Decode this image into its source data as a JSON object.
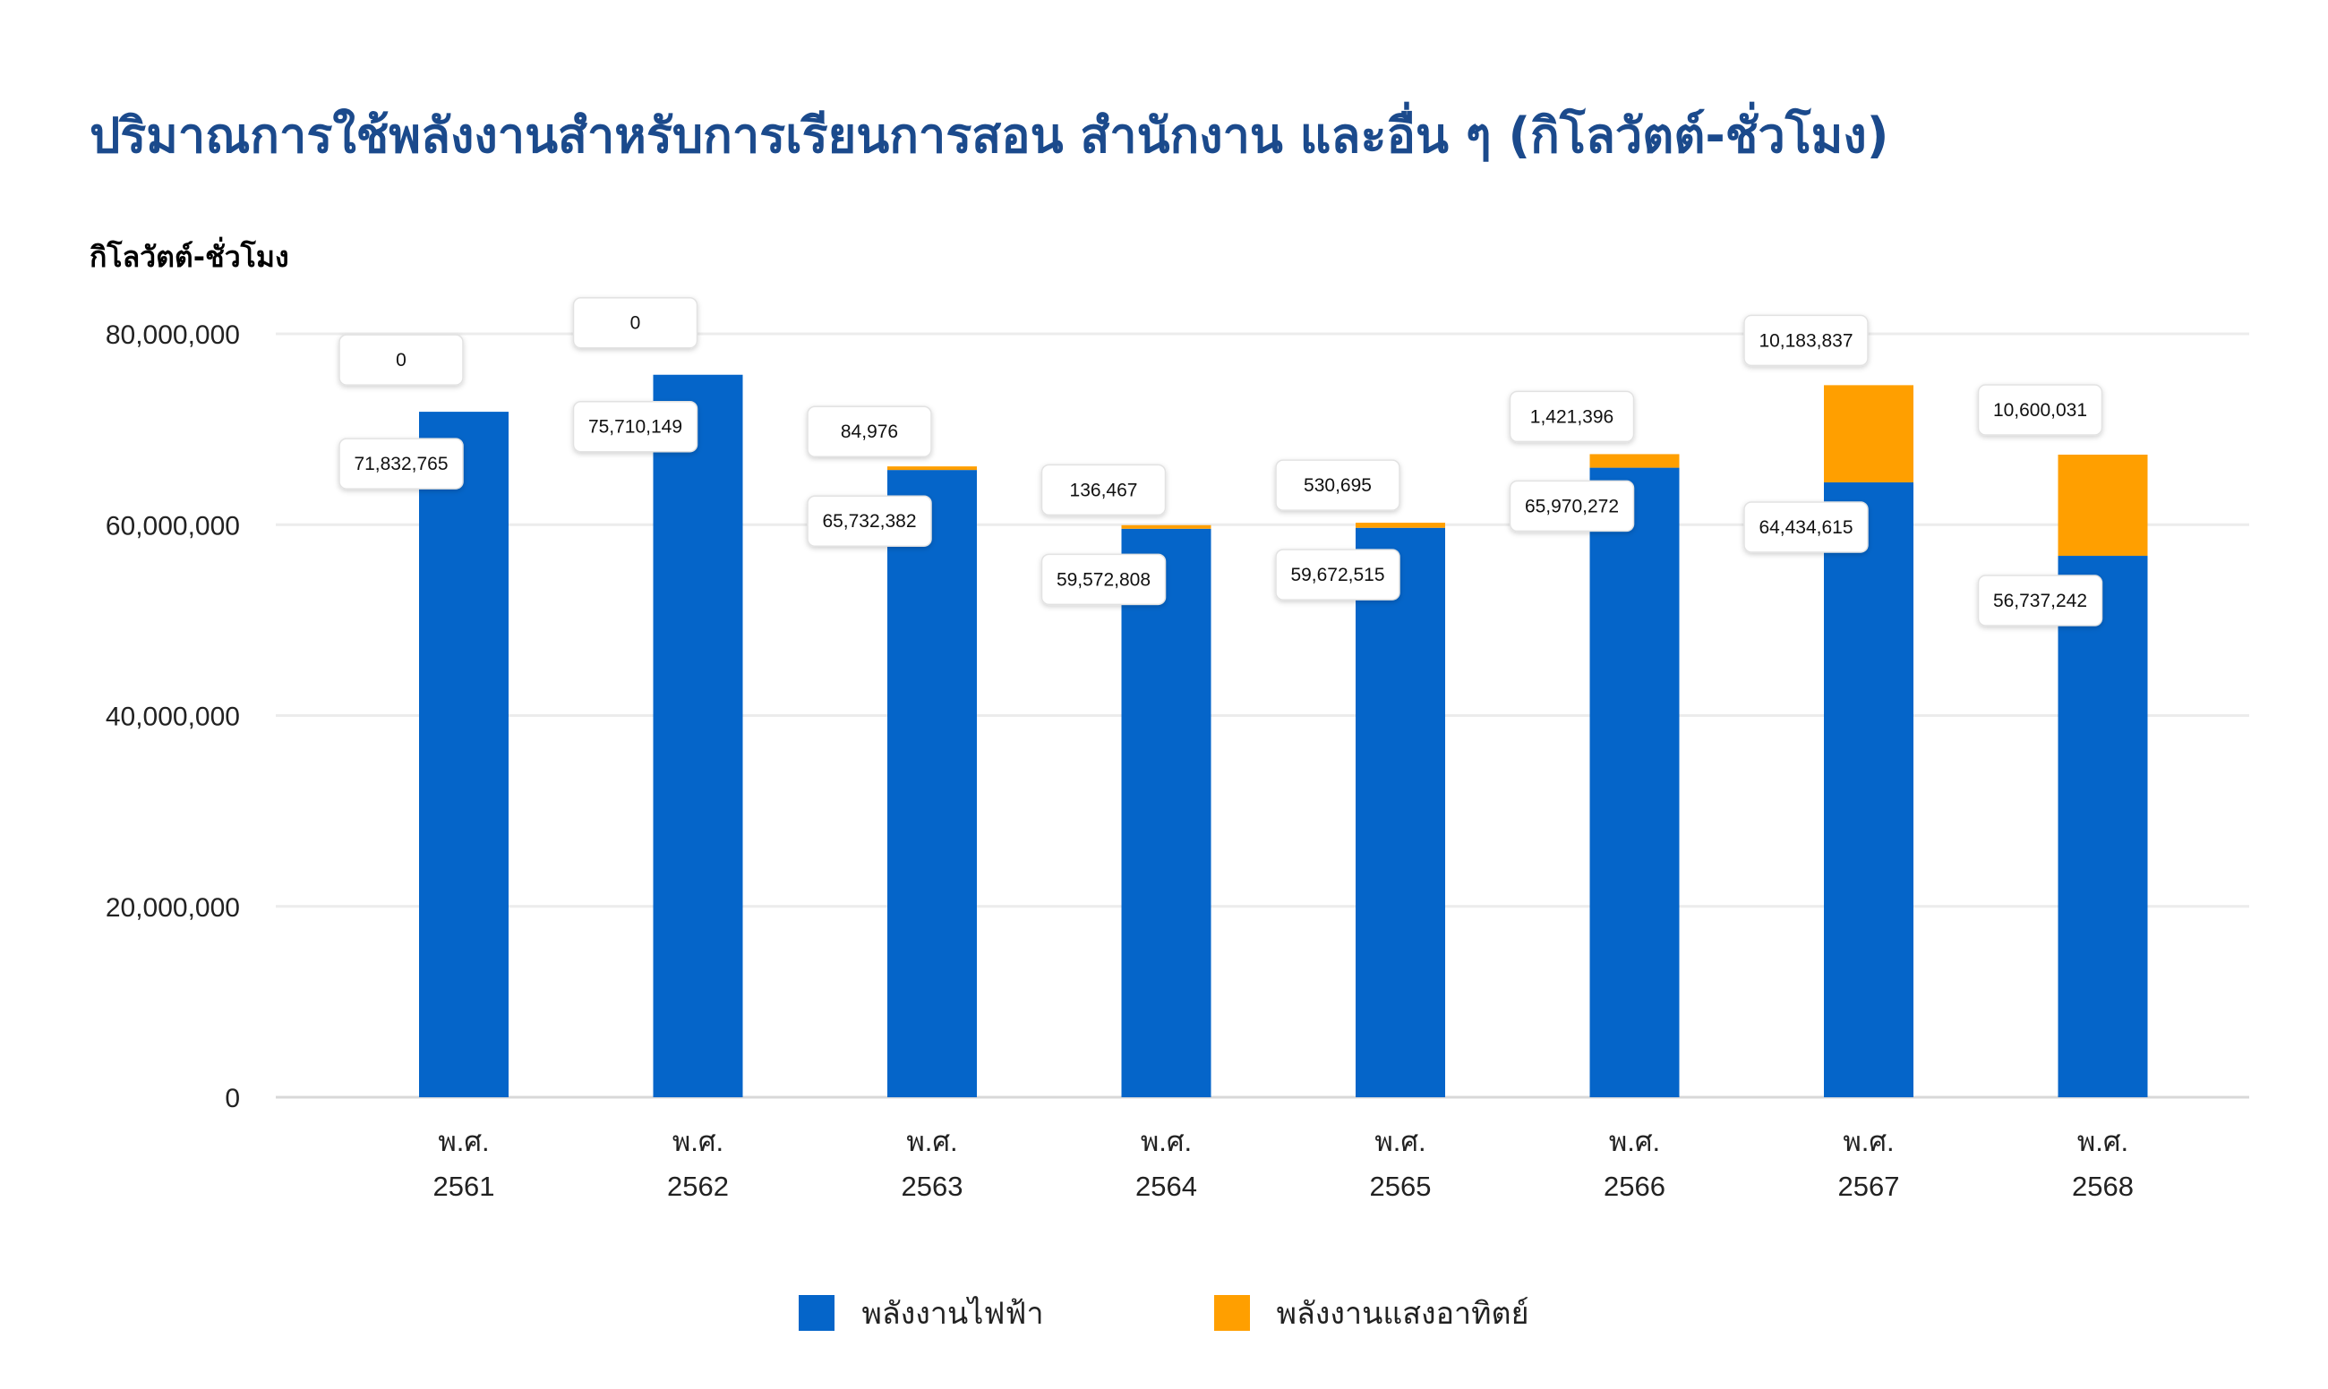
{
  "header": {
    "title": "ปริมาณการใช้พลังงานสำหรับการเรียนการสอน สำนักงาน และอื่น ๆ (กิโลวัตต์-ชั่วโมง)"
  },
  "colors": {
    "electric": "#0565c9",
    "solar": "#ff9f00",
    "title": "#1b4a8c"
  },
  "chart_data": {
    "type": "bar",
    "stacked": true,
    "title": "ปริมาณการใช้พลังงานสำหรับการเรียนการสอน สำนักงาน และอื่น ๆ (กิโลวัตต์-ชั่วโมง)",
    "ylabel": "กิโลวัตต์-ชั่วโมง",
    "xlabel": "",
    "categories": [
      [
        "พ.ศ.",
        "2561"
      ],
      [
        "พ.ศ.",
        "2562"
      ],
      [
        "พ.ศ.",
        "2563"
      ],
      [
        "พ.ศ.",
        "2564"
      ],
      [
        "พ.ศ.",
        "2565"
      ],
      [
        "พ.ศ.",
        "2566"
      ],
      [
        "พ.ศ.",
        "2567"
      ],
      [
        "พ.ศ.",
        "2568"
      ]
    ],
    "ylim": [
      0,
      80000000
    ],
    "yticks": [
      0,
      20000000,
      40000000,
      60000000,
      80000000
    ],
    "ytick_labels": [
      "0",
      "20,000,000",
      "40,000,000",
      "60,000,000",
      "80,000,000"
    ],
    "grid": true,
    "legend_position": "bottom",
    "series": [
      {
        "name": "พลังงานไฟฟ้า",
        "color": "#0565c9",
        "values": [
          71832765,
          75710149,
          65732382,
          59572808,
          59672515,
          65970272,
          64434615,
          56737242
        ],
        "labels": [
          "71,832,765",
          "75,710,149",
          "65,732,382",
          "59,572,808",
          "59,672,515",
          "65,970,272",
          "64,434,615",
          "56,737,242"
        ]
      },
      {
        "name": "พลังงานแสงอาทิตย์",
        "color": "#ff9f00",
        "values": [
          0,
          0,
          84976,
          136467,
          530695,
          1421396,
          10183837,
          10600031
        ],
        "labels": [
          "0",
          "0",
          "84,976",
          "136,467",
          "530,695",
          "1,421,396",
          "10,183,837",
          "10,600,031"
        ]
      }
    ]
  }
}
